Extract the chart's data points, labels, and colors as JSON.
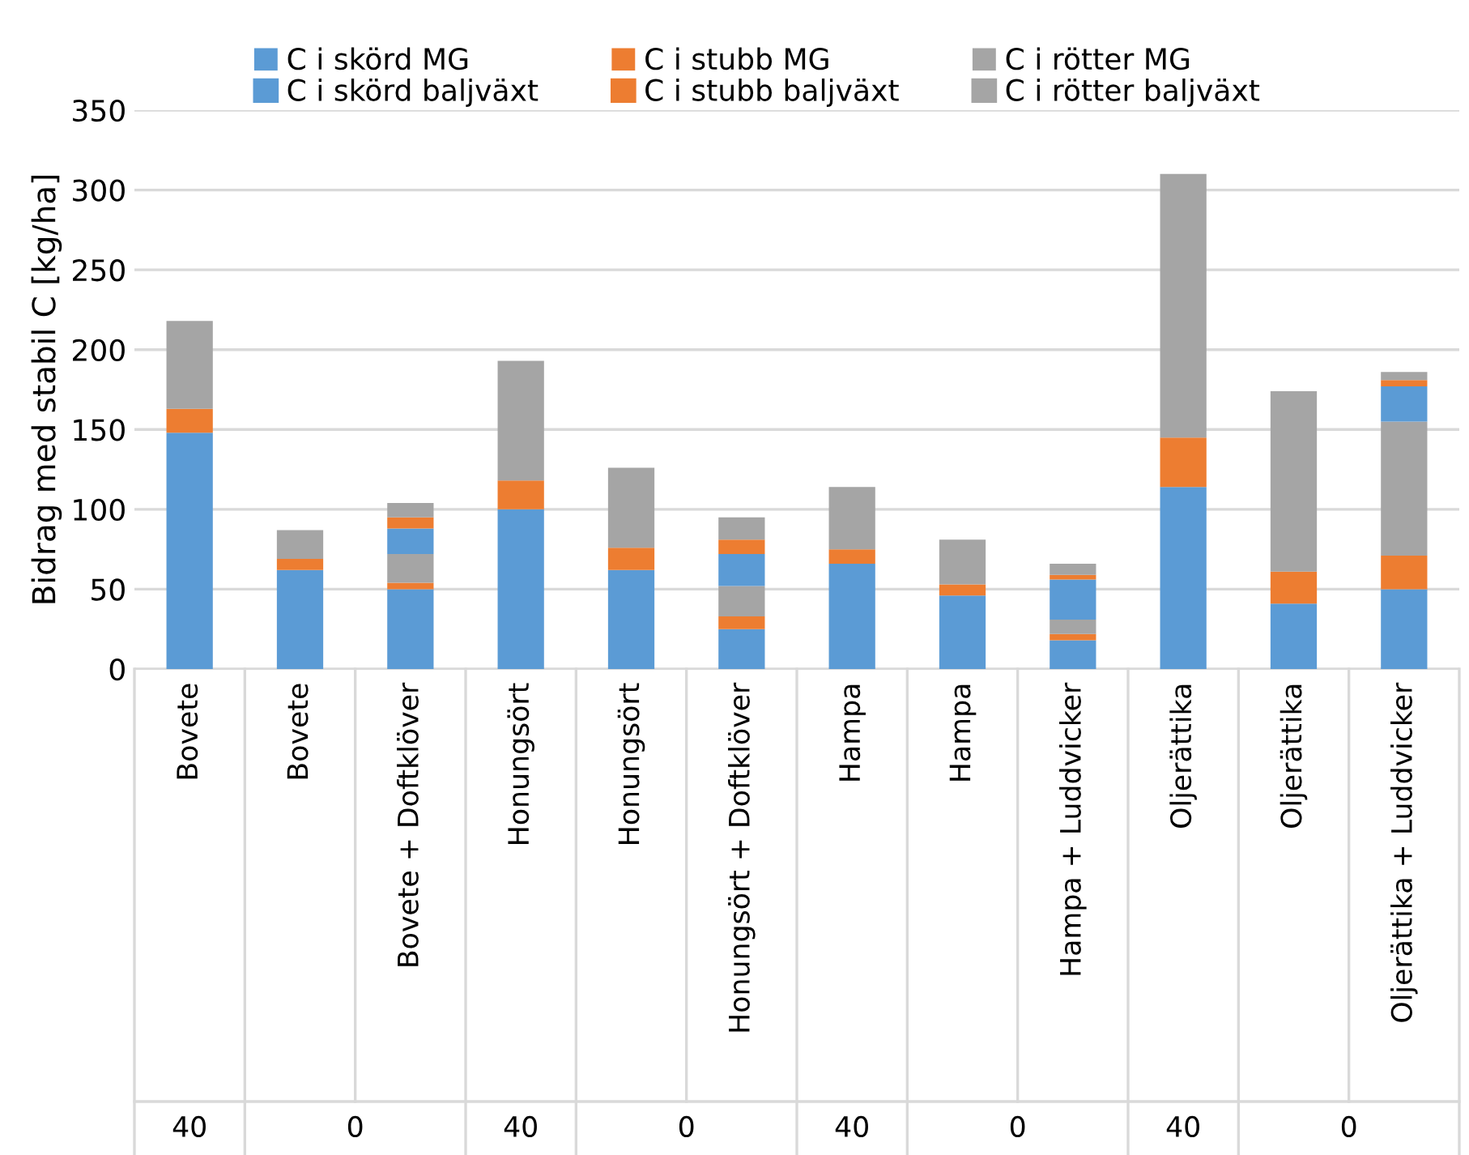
{
  "chart_data": {
    "type": "bar",
    "stacked": true,
    "ylabel": "Bidrag med stabil C [kg/ha]",
    "categories": [
      "Bovete",
      "Bovete",
      "Bovete + Doftklöver",
      "Honungsört",
      "Honungsört",
      "Honungsört + Doftklöver",
      "Hampa",
      "Hampa",
      "Hampa + Luddvicker",
      "Oljerättika",
      "Oljerättika",
      "Oljerättika + Luddvicker"
    ],
    "series": [
      {
        "name": "C i skörd MG",
        "color": "#5b9bd5",
        "values": [
          148,
          62,
          50,
          100,
          62,
          25,
          66,
          46,
          18,
          114,
          41,
          50
        ]
      },
      {
        "name": "C i stubb MG",
        "color": "#ed7d31",
        "values": [
          15,
          7,
          4,
          18,
          14,
          8,
          9,
          7,
          4,
          31,
          20,
          21
        ]
      },
      {
        "name": "C i rötter MG",
        "color": "#a5a5a5",
        "values": [
          55,
          18,
          18,
          75,
          50,
          19,
          39,
          28,
          9,
          165,
          113,
          84
        ]
      },
      {
        "name": "C i skörd baljväxt",
        "color": "#5b9bd5",
        "values": [
          null,
          null,
          16,
          null,
          null,
          20,
          null,
          null,
          25,
          null,
          null,
          22
        ]
      },
      {
        "name": "C i stubb baljväxt",
        "color": "#ed7d31",
        "values": [
          null,
          null,
          7,
          null,
          null,
          9,
          null,
          null,
          3,
          null,
          null,
          4
        ]
      },
      {
        "name": "C i rötter baljväxt",
        "color": "#a5a5a5",
        "values": [
          null,
          null,
          9,
          null,
          null,
          14,
          null,
          null,
          7,
          null,
          null,
          5
        ]
      }
    ],
    "ylim": [
      0,
      350
    ],
    "yticks": [
      0,
      50,
      100,
      150,
      200,
      250,
      300,
      350
    ],
    "grid": "y",
    "legend": "top",
    "annotations": [
      "40",
      "0",
      "40",
      "0",
      "40",
      "0",
      "40",
      "0"
    ]
  }
}
